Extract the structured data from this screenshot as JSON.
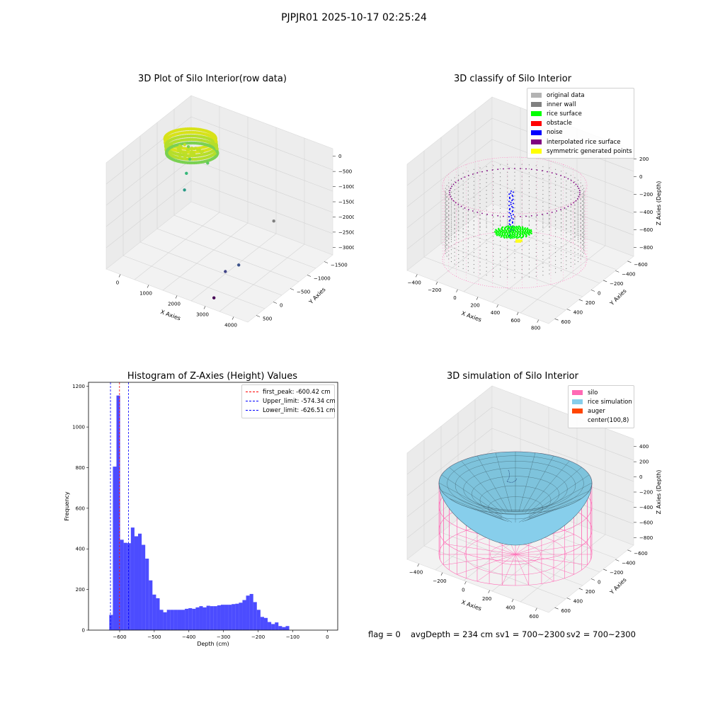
{
  "figure": {
    "suptitle": "PJPJR01 2025-10-17 02:25:24"
  },
  "panels": {
    "raw": {
      "title": "3D Plot of Silo Interior(row data)",
      "xlabel": "X Axies",
      "ylabel": "Y Axies",
      "zlabel": "Z Axies (Depth)",
      "xticks": [
        "0",
        "1000",
        "2000",
        "3000",
        "4000"
      ],
      "yticks": [
        "500",
        "0",
        "−500",
        "−1000",
        "−1500"
      ],
      "zticks": [
        "0",
        "−500",
        "−1000",
        "−1500",
        "−2000",
        "−2500",
        "−3000"
      ]
    },
    "classify": {
      "title": "3D classify of Silo Interior",
      "xlabel": "X Axies",
      "ylabel": "Y Axies",
      "zlabel": "Z Axies (Depth)",
      "xticks": [
        "−400",
        "−200",
        "0",
        "200",
        "400",
        "600",
        "800"
      ],
      "yticks": [
        "600",
        "400",
        "200",
        "0",
        "−200",
        "−400",
        "−600"
      ],
      "zticks": [
        "200",
        "0",
        "−200",
        "−400",
        "−600",
        "−800"
      ],
      "legend": [
        {
          "label": "original data",
          "color": "#b3b3b3"
        },
        {
          "label": "inner wall",
          "color": "#808080"
        },
        {
          "label": "rice surface",
          "color": "#00ff00"
        },
        {
          "label": "obstacle",
          "color": "#ff0000"
        },
        {
          "label": "noise",
          "color": "#0000ff"
        },
        {
          "label": "interpolated rice surface",
          "color": "#800080"
        },
        {
          "label": "symmetric generated points",
          "color": "#ffff00"
        }
      ]
    },
    "simulation": {
      "title": "3D simulation of Silo Interior",
      "xlabel": "X Axies",
      "ylabel": "Y Axies",
      "zlabel": "Z Axies (Depth)",
      "xticks": [
        "−400",
        "−200",
        "0",
        "200",
        "400",
        "600"
      ],
      "yticks": [
        "600",
        "400",
        "200",
        "0",
        "−200",
        "−400",
        "−600"
      ],
      "zticks": [
        "400",
        "200",
        "0",
        "−200",
        "−400",
        "−600",
        "−800"
      ],
      "legend": [
        {
          "label": "silo",
          "color": "#ff69b4"
        },
        {
          "label": "rice simulation",
          "color": "#87ceeb"
        },
        {
          "label": "auger",
          "color": "#ff4500"
        },
        {
          "label": "center(100,8)",
          "color": ""
        }
      ]
    }
  },
  "status": {
    "flag": "flag = 0",
    "avg_depth": "avgDepth = 234 cm",
    "sv1": "sv1 = 700~2300",
    "sv2": "sv2 = 700~2300"
  },
  "chart_data": [
    {
      "type": "scatter",
      "title": "3D Plot of Silo Interior(row data)",
      "xlabel": "X Axies",
      "ylabel": "Y Axies",
      "zlabel": "Z Axies (Depth)",
      "xlim": [
        -500,
        4000
      ],
      "ylim": [
        -1700,
        700
      ],
      "zlim": [
        -3100,
        100
      ],
      "points": [
        {
          "x": 200,
          "y": 0,
          "z": -600,
          "color": "#7ad151"
        },
        {
          "x": 300,
          "y": -50,
          "z": -900,
          "color": "#5ec962"
        },
        {
          "x": 250,
          "y": -100,
          "z": -1300,
          "color": "#35b779"
        },
        {
          "x": 300,
          "y": -200,
          "z": -1700,
          "color": "#2a9a86"
        },
        {
          "x": 700,
          "y": 100,
          "z": -1000,
          "color": "#5ec962"
        },
        {
          "x": 2800,
          "y": 100,
          "z": -2000,
          "color": "#7f7f7f"
        },
        {
          "x": 2700,
          "y": -800,
          "z": -2600,
          "color": "#3b528b"
        },
        {
          "x": 2500,
          "y": -1000,
          "z": -2700,
          "color": "#414487"
        },
        {
          "x": 2700,
          "y": -1500,
          "z": -3000,
          "color": "#440154"
        }
      ]
    },
    {
      "type": "scatter",
      "title": "3D classify of Silo Interior",
      "xlabel": "X Axies",
      "ylabel": "Y Axies",
      "zlabel": "Z Axies (Depth)",
      "xlim": [
        -500,
        800
      ],
      "ylim": [
        -650,
        650
      ],
      "zlim": [
        -900,
        300
      ],
      "series": [
        {
          "name": "original data",
          "color": "#b3b3b3"
        },
        {
          "name": "inner wall",
          "color": "#808080"
        },
        {
          "name": "rice surface",
          "color": "#00ff00"
        },
        {
          "name": "obstacle",
          "color": "#ff0000"
        },
        {
          "name": "noise",
          "color": "#0000ff"
        },
        {
          "name": "interpolated rice surface",
          "color": "#800080"
        },
        {
          "name": "symmetric generated points",
          "color": "#ffff00"
        }
      ]
    },
    {
      "type": "bar",
      "title": "Histogram of Z-Axies (Height) Values",
      "xlabel": "Depth (cm)",
      "ylabel": "Frequency",
      "xlim": [
        -690,
        30
      ],
      "ylim": [
        0,
        1220
      ],
      "xticks": [
        -600,
        -500,
        -400,
        -300,
        -200,
        -100,
        0
      ],
      "yticks": [
        0,
        200,
        400,
        600,
        800,
        1000,
        1200
      ],
      "bin_start": -630,
      "bin_width": 10.4,
      "values": [
        75,
        805,
        1155,
        445,
        430,
        428,
        505,
        462,
        475,
        420,
        352,
        245,
        175,
        157,
        100,
        88,
        100,
        100,
        100,
        100,
        100,
        105,
        108,
        105,
        112,
        118,
        112,
        120,
        118,
        118,
        122,
        125,
        125,
        125,
        128,
        130,
        135,
        148,
        170,
        178,
        138,
        100,
        65,
        60,
        40,
        30,
        38,
        20,
        15,
        20
      ],
      "color": "#0000ff",
      "vlines": [
        {
          "label": "first_peak: -600.42 cm",
          "x": -600.42,
          "color": "#ff0000"
        },
        {
          "label": "Upper_limit: -574.34 cm",
          "x": -574.34,
          "color": "#0000ff"
        },
        {
          "label": "Lower_limit: -626.51 cm",
          "x": -626.51,
          "color": "#0000ff"
        }
      ]
    },
    {
      "type": "surface",
      "title": "3D simulation of Silo Interior",
      "xlabel": "X Axies",
      "ylabel": "Y Axies",
      "zlabel": "Z Axies (Depth)",
      "xlim": [
        -500,
        700
      ],
      "ylim": [
        -650,
        650
      ],
      "zlim": [
        -900,
        450
      ],
      "series": [
        {
          "name": "silo",
          "color": "#ff69b4"
        },
        {
          "name": "rice simulation",
          "color": "#87ceeb"
        },
        {
          "name": "auger",
          "color": "#ff4500"
        },
        {
          "name": "center(100,8)",
          "color": ""
        }
      ]
    }
  ]
}
